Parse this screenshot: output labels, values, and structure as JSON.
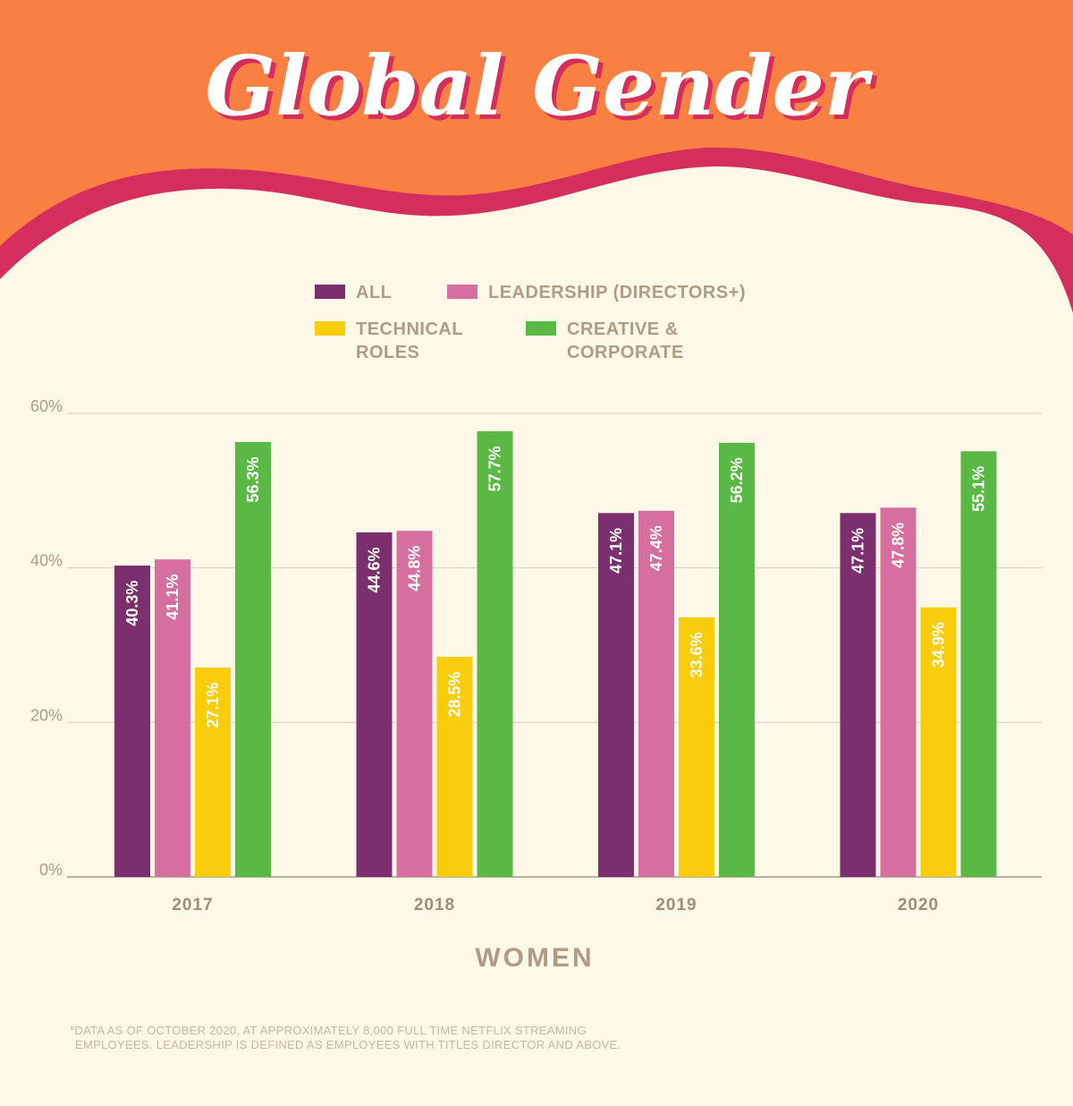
{
  "title": "Global Gender",
  "footnote_lines": [
    "*DATA AS OF OCTOBER 2020, AT APPROXIMATELY 8,000 FULL TIME NETFLIX STREAMING",
    "EMPLOYEES. LEADERSHIP IS DEFINED AS EMPLOYEES WITH TITLES DIRECTOR AND ABOVE."
  ],
  "colors": {
    "header_orange": "#f97f42",
    "wave_pink": "#d42f5c",
    "background": "#fdf8e8"
  },
  "chart_data": {
    "type": "bar",
    "title": "",
    "xlabel": "WOMEN",
    "ylabel": "",
    "categories": [
      "2017",
      "2018",
      "2019",
      "2020"
    ],
    "ylim": [
      0,
      60
    ],
    "yticks": [
      "0%",
      "20%",
      "40%",
      "60%"
    ],
    "ytick_values": [
      0,
      20,
      40,
      60
    ],
    "grid": true,
    "legend_position": "top",
    "series": [
      {
        "name": "ALL",
        "legend_lines": [
          "ALL"
        ],
        "color": "#7b2f6e",
        "values": [
          40.3,
          44.6,
          47.1,
          47.1
        ],
        "labels": [
          "40.3%",
          "44.6%",
          "47.1%",
          "47.1%"
        ]
      },
      {
        "name": "LEADERSHIP (DIRECTORS+)",
        "legend_lines": [
          "LEADERSHIP (DIRECTORS+)"
        ],
        "color": "#d66fa0",
        "values": [
          41.1,
          44.8,
          47.4,
          47.8
        ],
        "labels": [
          "41.1%",
          "44.8%",
          "47.4%",
          "47.8%"
        ]
      },
      {
        "name": "TECHNICAL ROLES",
        "legend_lines": [
          "TECHNICAL",
          "ROLES"
        ],
        "color": "#f9cc0c",
        "values": [
          27.1,
          28.5,
          33.6,
          34.9
        ],
        "labels": [
          "27.1%",
          "28.5%",
          "33.6%",
          "34.9%"
        ]
      },
      {
        "name": "CREATIVE & CORPORATE",
        "legend_lines": [
          "CREATIVE &",
          "CORPORATE"
        ],
        "color": "#5ab945",
        "values": [
          56.3,
          57.7,
          56.2,
          55.1
        ],
        "labels": [
          "56.3%",
          "57.7%",
          "56.2%",
          "55.1%"
        ]
      }
    ]
  }
}
